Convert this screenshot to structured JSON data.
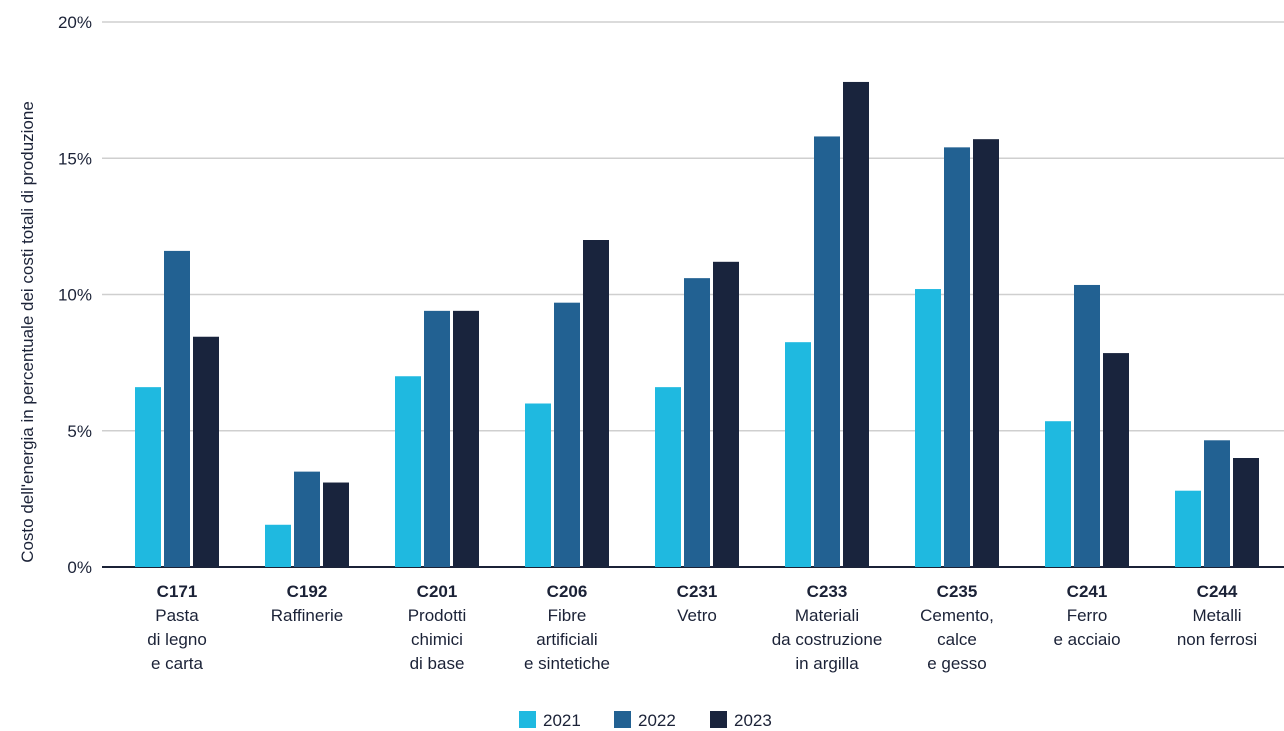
{
  "chart_data": {
    "type": "bar",
    "title": "",
    "xlabel": "",
    "ylabel": "Costo dell'energia in percentuale dei costi totali di produzione",
    "ylim": [
      0,
      20
    ],
    "yticks": [
      "0%",
      "5%",
      "10%",
      "15%",
      "20%"
    ],
    "grid": true,
    "legend_position": "bottom-center",
    "categories": [
      {
        "code": "C171",
        "name": [
          "Pasta",
          "di legno",
          "e carta"
        ]
      },
      {
        "code": "C192",
        "name": [
          "Raffinerie"
        ]
      },
      {
        "code": "C201",
        "name": [
          "Prodotti",
          "chimici",
          "di base"
        ]
      },
      {
        "code": "C206",
        "name": [
          "Fibre",
          "artificiali",
          "e sintetiche"
        ]
      },
      {
        "code": "C231",
        "name": [
          "Vetro"
        ]
      },
      {
        "code": "C233",
        "name": [
          "Materiali",
          "da costruzione",
          "in argilla"
        ]
      },
      {
        "code": "C235",
        "name": [
          "Cemento,",
          "calce",
          "e gesso"
        ]
      },
      {
        "code": "C241",
        "name": [
          "Ferro",
          "e acciaio"
        ]
      },
      {
        "code": "C244",
        "name": [
          "Metalli",
          "non ferrosi"
        ]
      }
    ],
    "series": [
      {
        "name": "2021",
        "color": "#1fb9e0",
        "values": [
          6.6,
          1.55,
          7.0,
          6.0,
          6.6,
          8.25,
          10.2,
          5.35,
          2.8
        ]
      },
      {
        "name": "2022",
        "color": "#226192",
        "values": [
          11.6,
          3.5,
          9.4,
          9.7,
          10.6,
          15.8,
          15.4,
          10.35,
          4.65
        ]
      },
      {
        "name": "2023",
        "color": "#19243d",
        "values": [
          8.45,
          3.1,
          9.4,
          12.0,
          11.2,
          17.8,
          15.7,
          7.85,
          4.0
        ]
      }
    ]
  }
}
